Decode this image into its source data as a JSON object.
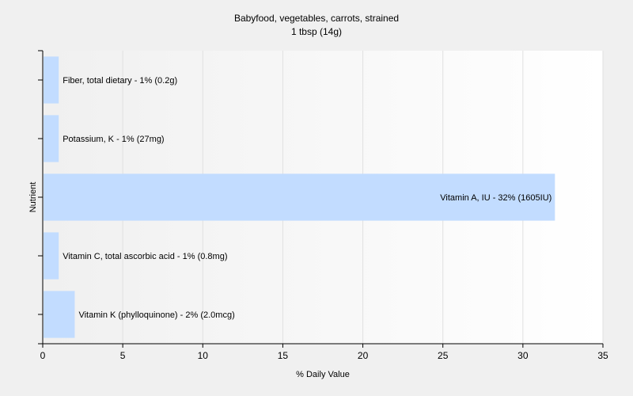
{
  "chart_data": {
    "type": "bar",
    "orientation": "horizontal",
    "title": "Babyfood, vegetables, carrots, strained",
    "subtitle": "1 tbsp (14g)",
    "xlabel": "% Daily Value",
    "ylabel": "Nutrient",
    "xlim": [
      0,
      35
    ],
    "xticks": [
      0,
      5,
      10,
      15,
      20,
      25,
      30,
      35
    ],
    "grid": true,
    "colors": {
      "bar": "#c2dcff",
      "grid": "#e0e0e0",
      "axis": "#000000",
      "plot_bg": "#ffffff"
    },
    "categories": [
      "Fiber, total dietary",
      "Potassium, K",
      "Vitamin A, IU",
      "Vitamin C, total ascorbic acid",
      "Vitamin K (phylloquinone)"
    ],
    "values": [
      1,
      1,
      32,
      1,
      2
    ],
    "labels": [
      "Fiber, total dietary - 1% (0.2g)",
      "Potassium, K - 1% (27mg)",
      "Vitamin A, IU - 32% (1605IU)",
      "Vitamin C, total ascorbic acid - 1% (0.8mg)",
      "Vitamin K (phylloquinone) - 2% (2.0mcg)"
    ]
  }
}
